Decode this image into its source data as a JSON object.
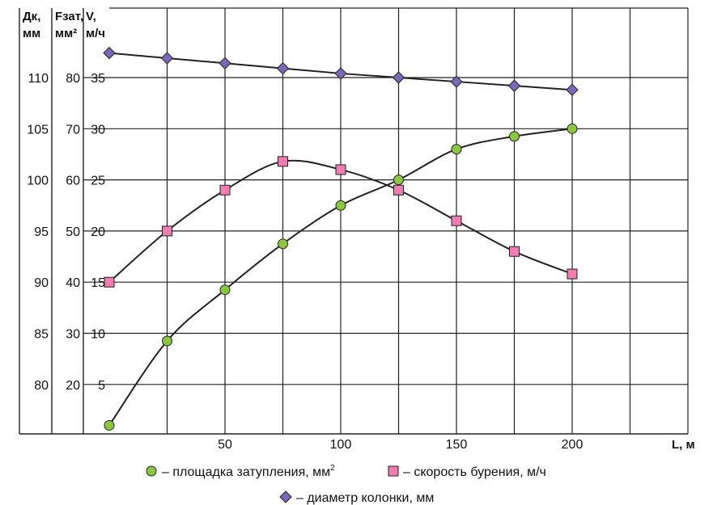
{
  "chart_data": {
    "type": "line",
    "x_label": "L, м",
    "x_ticks": [
      50,
      100,
      150,
      200
    ],
    "x_range": [
      0,
      250
    ],
    "x": [
      0,
      25,
      50,
      75,
      100,
      125,
      150,
      175,
      200
    ],
    "axes": [
      {
        "title_line1": "Дк,",
        "title_line2": "мм",
        "ticks": [
          110,
          105,
          100,
          95,
          90,
          85,
          80
        ]
      },
      {
        "title_line1": "Fзат,",
        "title_line2": "мм²",
        "ticks": [
          80,
          70,
          60,
          50,
          40,
          30,
          20
        ]
      },
      {
        "title_line1": "V,",
        "title_line2": "м/ч",
        "ticks": [
          35,
          30,
          25,
          20,
          15,
          10,
          5
        ]
      }
    ],
    "grid": true,
    "series": [
      {
        "name": "площадка затупления, мм²",
        "marker": "circle",
        "color": "#8cc63f",
        "axis": "Fзат",
        "values": [
          12,
          28.5,
          38.5,
          47.5,
          55,
          60,
          66,
          68.5,
          70
        ]
      },
      {
        "name": "скорость бурения, м/ч",
        "marker": "square",
        "color": "#f07cb0",
        "axis": "V",
        "values": [
          15,
          20,
          24,
          26.8,
          26,
          24,
          21,
          18,
          15.8
        ]
      },
      {
        "name": "диаметр колонки, мм",
        "marker": "diamond",
        "color": "#7b68b8",
        "axis": "Дк",
        "values": [
          112.4,
          111.9,
          111.4,
          110.9,
          110.4,
          110,
          109.6,
          109.2,
          108.8
        ]
      }
    ],
    "legend": [
      {
        "text": "– площадка затупления, мм",
        "sup": "2",
        "marker": "circle"
      },
      {
        "text": "– скорость бурения, м/ч",
        "sup": "",
        "marker": "square"
      },
      {
        "text": "– диаметр колонки, мм",
        "sup": "",
        "marker": "diamond"
      }
    ]
  }
}
